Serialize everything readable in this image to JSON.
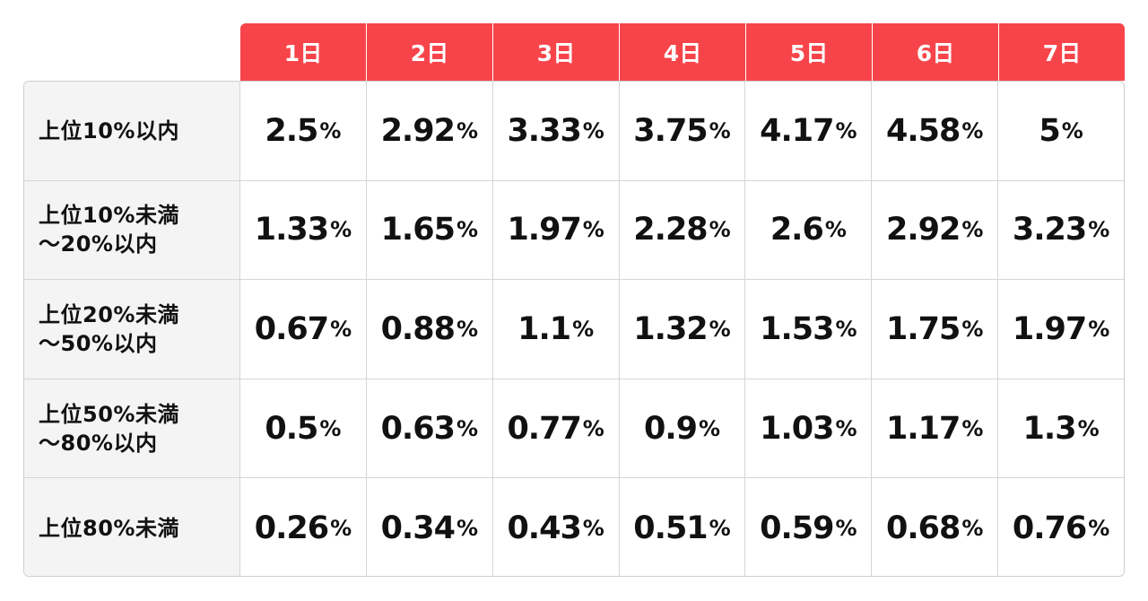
{
  "days": [
    "1日",
    "2日",
    "3日",
    "4日",
    "5日",
    "6日",
    "7日"
  ],
  "unit": "%",
  "rows": [
    {
      "label": "上位10%以内",
      "values": [
        "2.5",
        "2.92",
        "3.33",
        "3.75",
        "4.17",
        "4.58",
        "5"
      ]
    },
    {
      "label": "上位10%未満\n〜20%以内",
      "values": [
        "1.33",
        "1.65",
        "1.97",
        "2.28",
        "2.6",
        "2.92",
        "3.23"
      ]
    },
    {
      "label": "上位20%未満\n〜50%以内",
      "values": [
        "0.67",
        "0.88",
        "1.1",
        "1.32",
        "1.53",
        "1.75",
        "1.97"
      ]
    },
    {
      "label": "上位50%未満\n〜80%以内",
      "values": [
        "0.5",
        "0.63",
        "0.77",
        "0.9",
        "1.03",
        "1.17",
        "1.3"
      ]
    },
    {
      "label": "上位80%未満",
      "values": [
        "0.26",
        "0.34",
        "0.43",
        "0.51",
        "0.59",
        "0.68",
        "0.76"
      ]
    }
  ],
  "colors": {
    "header_bg": "#f7444a",
    "header_text": "#ffffff",
    "label_bg": "#f4f4f4",
    "border": "#d6d6d6",
    "text": "#111111"
  }
}
